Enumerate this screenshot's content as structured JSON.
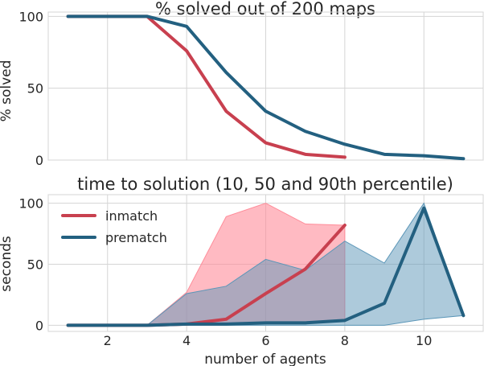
{
  "chart_data": [
    {
      "type": "line",
      "title": "% solved out of 200 maps",
      "xlabel": "",
      "ylabel": "% solved",
      "xlim": [
        0.5,
        11.5
      ],
      "ylim": [
        0,
        103
      ],
      "xticks": [
        2,
        4,
        6,
        8,
        10
      ],
      "yticks": [
        0,
        50,
        100
      ],
      "tick_labels_x_shown": false,
      "grid": true,
      "series": [
        {
          "key": "inmatch",
          "color": "#c8404f",
          "x": [
            1,
            2,
            3,
            4,
            5,
            6,
            7,
            8
          ],
          "y": [
            100,
            100,
            100,
            76,
            34,
            12,
            4,
            2
          ]
        },
        {
          "key": "prematch",
          "color": "#236080",
          "x": [
            1,
            2,
            3,
            4,
            5,
            6,
            7,
            8,
            9,
            10,
            11
          ],
          "y": [
            100,
            100,
            100,
            93,
            61,
            34,
            20,
            11,
            4,
            3,
            1
          ]
        }
      ]
    },
    {
      "type": "area",
      "title": "time to solution (10, 50 and 90th percentile)",
      "xlabel": "number of agents",
      "ylabel": "seconds",
      "xlim": [
        0.5,
        11.5
      ],
      "ylim": [
        -5,
        107
      ],
      "xticks": [
        2,
        4,
        6,
        8,
        10
      ],
      "yticks": [
        0,
        50,
        100
      ],
      "grid": true,
      "legend_position": "top-left",
      "series": [
        {
          "name": "inmatch",
          "color": "#c8404f",
          "band_color": "#ff8c99",
          "x": [
            1,
            2,
            3,
            4,
            5,
            6,
            7,
            8
          ],
          "p10": [
            0,
            0,
            0,
            0.5,
            1,
            2,
            2,
            3
          ],
          "p50": [
            0,
            0,
            0,
            1,
            5,
            26,
            46,
            82
          ],
          "p90": [
            0,
            0,
            0,
            27,
            89,
            100,
            83,
            82
          ]
        },
        {
          "name": "prematch",
          "color": "#236080",
          "band_color": "#5b96b8",
          "x": [
            1,
            2,
            3,
            4,
            5,
            6,
            7,
            8,
            9,
            10,
            11
          ],
          "p10": [
            0,
            0,
            0,
            0,
            0,
            0,
            0,
            0,
            0,
            5,
            8
          ],
          "p50": [
            0,
            0,
            0,
            1,
            1,
            2,
            2,
            4,
            18,
            96,
            8
          ],
          "p90": [
            0,
            0,
            0,
            26,
            32,
            54,
            45,
            69,
            51,
            100,
            8
          ]
        }
      ]
    }
  ]
}
